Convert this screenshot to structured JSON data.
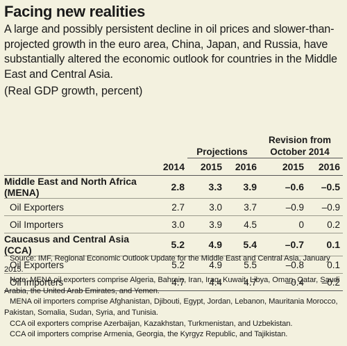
{
  "title": "Facing new realities",
  "intro": "A large and possibly persistent decline in oil prices and slower-than-projected growth in the euro area, China, Japan, and Russia, have substantially altered the economic outlook for countries in the Middle East and Central Asia.",
  "units": "(Real GDP growth, percent)",
  "table": {
    "header": {
      "projections": "Projections",
      "revision_line1": "Revision from",
      "revision_line2": "October 2014",
      "years": [
        "2014",
        "2015",
        "2016",
        "2015",
        "2016"
      ]
    },
    "rows": [
      {
        "label": "Middle East and North Africa (MENA)",
        "bold": true,
        "values": [
          "2.8",
          "3.3",
          "3.9",
          "–0.6",
          "–0.5"
        ]
      },
      {
        "label": "Oil Exporters",
        "bold": false,
        "values": [
          "2.7",
          "3.0",
          "3.7",
          "–0.9",
          "–0.9"
        ]
      },
      {
        "label": "Oil Importers",
        "bold": false,
        "values": [
          "3.0",
          "3.9",
          "4.5",
          "0",
          "0.2"
        ]
      },
      {
        "label": "Caucasus and Central Asia (CCA)",
        "bold": true,
        "values": [
          "5.2",
          "4.9",
          "5.4",
          "–0.7",
          "0.1"
        ]
      },
      {
        "label": "Oil Exporters",
        "bold": false,
        "values": [
          "5.2",
          "4.9",
          "5.5",
          "–0.8",
          "0.1"
        ]
      },
      {
        "label": "Oil Importers",
        "bold": false,
        "values": [
          "4.7",
          "4.4",
          "4.7",
          "–0.4",
          "–0.2"
        ]
      }
    ]
  },
  "notes": {
    "source": "Source: IMF, Regional Economic Outlook Update for the Middle East and Central Asia, January 2015.",
    "note1": "Note: MENA oil exporters comprise Algeria, Bahrain, Iran, Iraq, Kuwait, Libya, Oman, Qatar, Saudi Arabia, the United Arab Emirates, and Yemen.",
    "note2": "MENA oil importers comprise Afghanistan, Djibouti, Egypt, Jordan, Lebanon, Mauritania Morocco, Pakistan, Somalia, Sudan, Syria, and Tunisia.",
    "note3": "CCA oil exporters comprise Azerbaijan, Kazakhstan, Turkmenistan, and Uzbekistan.",
    "note4": "CCA oil importers comprise Armenia, Georgia, the Kyrgyz Republic, and Tajikistan."
  }
}
